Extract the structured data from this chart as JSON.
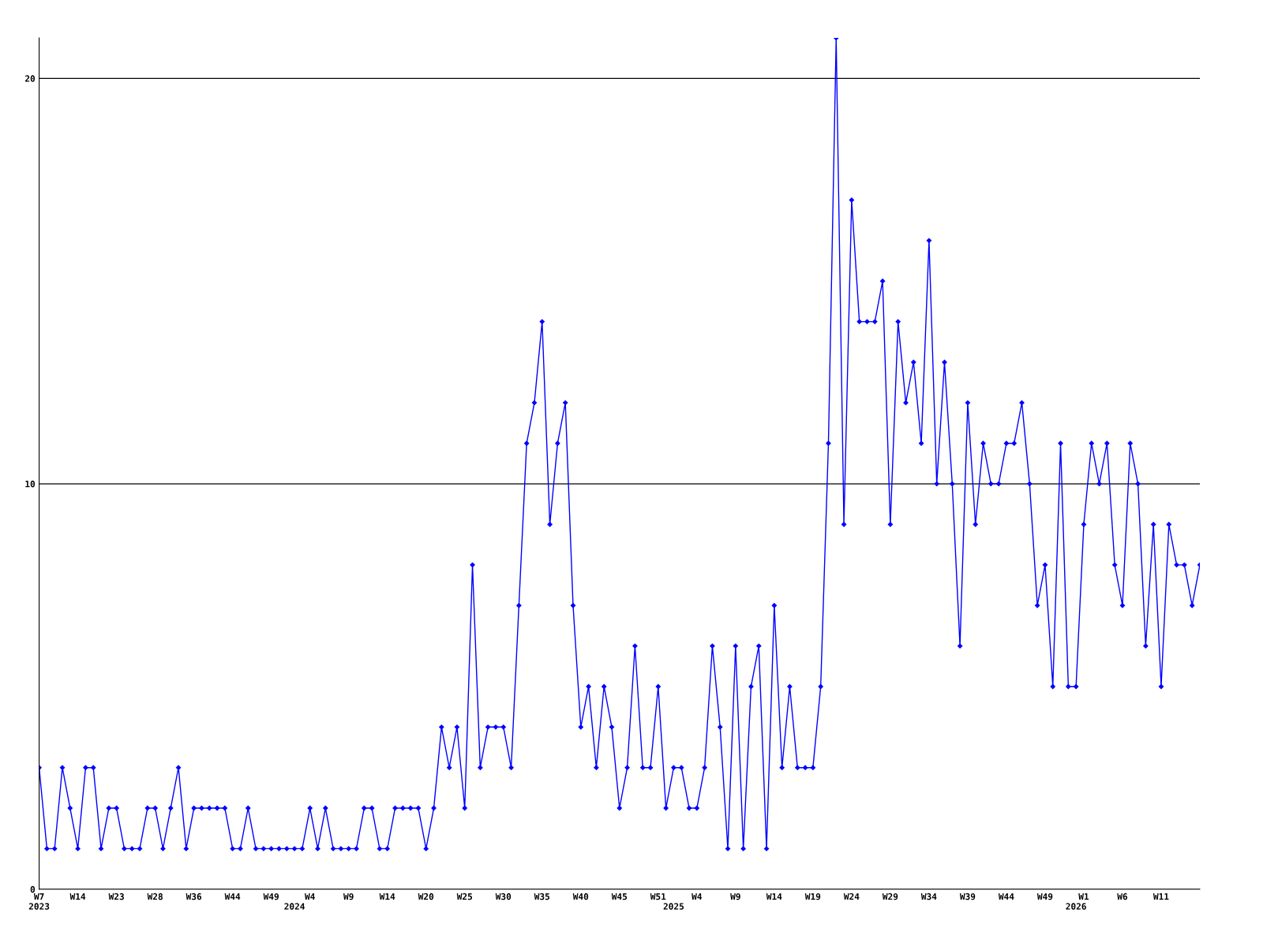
{
  "chart_data": {
    "type": "line",
    "categories": [
      "W7\n2023",
      null,
      null,
      null,
      null,
      "W14",
      null,
      null,
      null,
      null,
      "W23",
      null,
      null,
      null,
      null,
      "W28",
      null,
      null,
      null,
      null,
      "W36",
      null,
      null,
      null,
      null,
      "W44",
      null,
      null,
      null,
      null,
      "W49",
      null,
      null,
      "\n2024",
      null,
      "W4",
      null,
      null,
      null,
      null,
      "W9",
      null,
      null,
      null,
      null,
      "W14",
      null,
      null,
      null,
      null,
      "W20",
      null,
      null,
      null,
      null,
      "W25",
      null,
      null,
      null,
      null,
      "W30",
      null,
      null,
      null,
      null,
      "W35",
      null,
      null,
      null,
      null,
      "W40",
      null,
      null,
      null,
      null,
      "W45",
      null,
      null,
      null,
      null,
      "W51",
      null,
      "\n2025",
      null,
      null,
      "W4",
      null,
      null,
      null,
      null,
      "W9",
      null,
      null,
      null,
      null,
      "W14",
      null,
      null,
      null,
      null,
      "W19",
      null,
      null,
      null,
      null,
      "W24",
      null,
      null,
      null,
      null,
      "W29",
      null,
      null,
      null,
      null,
      "W34",
      null,
      null,
      null,
      null,
      "W39",
      null,
      null,
      null,
      null,
      "W44",
      null,
      null,
      null,
      null,
      "W49",
      null,
      null,
      null,
      "\n2026",
      "W1",
      null,
      null,
      null,
      null,
      "W6",
      null,
      null,
      null,
      null,
      "W11",
      null,
      null,
      null,
      null,
      null
    ],
    "series": [
      {
        "color": "#0000ff",
        "values": [
          3,
          1,
          1,
          3,
          2,
          1,
          3,
          3,
          1,
          2,
          2,
          1,
          1,
          1,
          2,
          2,
          1,
          2,
          3,
          1,
          2,
          2,
          2,
          2,
          2,
          1,
          1,
          2,
          1,
          1,
          1,
          1,
          1,
          1,
          1,
          2,
          1,
          2,
          1,
          1,
          1,
          1,
          2,
          2,
          1,
          1,
          2,
          2,
          2,
          2,
          1,
          2,
          4,
          3,
          4,
          2,
          8,
          3,
          4,
          4,
          4,
          3,
          7,
          11,
          12,
          14,
          9,
          11,
          12,
          7,
          4,
          5,
          3,
          5,
          4,
          2,
          3,
          6,
          3,
          3,
          5,
          2,
          3,
          3,
          2,
          2,
          3,
          6,
          4,
          1,
          6,
          1,
          5,
          6,
          1,
          7,
          3,
          5,
          3,
          3,
          3,
          5,
          11,
          21,
          9,
          17,
          14,
          14,
          14,
          15,
          9,
          14,
          12,
          13,
          11,
          16,
          10,
          13,
          10,
          6,
          12,
          9,
          11,
          10,
          10,
          11,
          11,
          12,
          10,
          7,
          8,
          5,
          11,
          5,
          5,
          9,
          11,
          10,
          11,
          8,
          7,
          11,
          10,
          6,
          9,
          5,
          9,
          8,
          8,
          7,
          8
        ]
      }
    ],
    "ylim": [
      0,
      21
    ],
    "yticks": [
      0,
      10,
      20
    ],
    "grid": "y",
    "marker": "diamond",
    "line_style": "solid",
    "legend": false
  }
}
